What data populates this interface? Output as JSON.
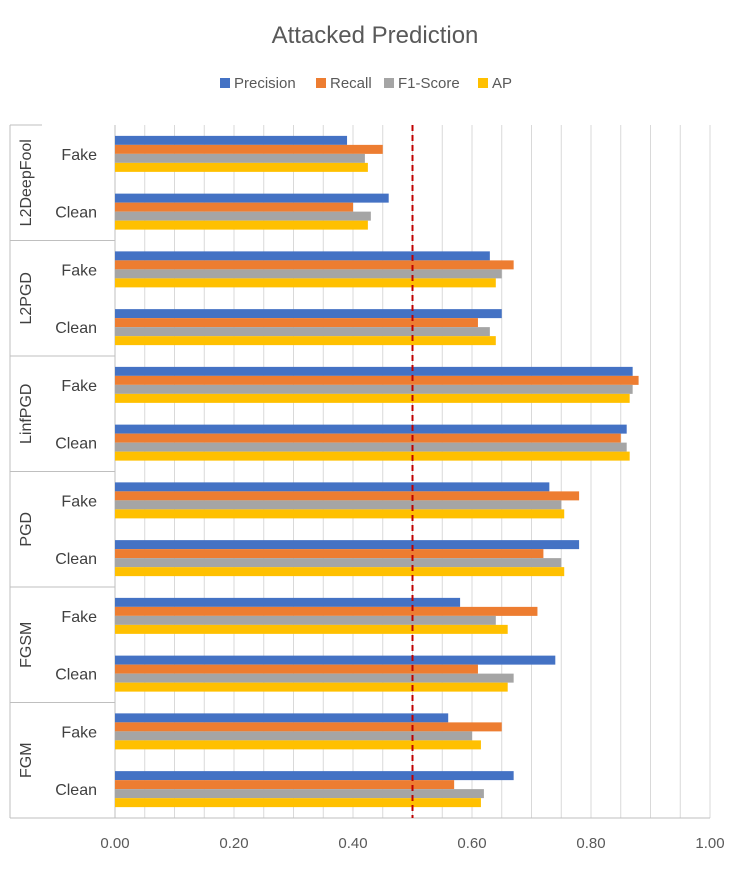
{
  "chart_data": {
    "type": "bar",
    "orientation": "horizontal",
    "title": "Attacked Prediction",
    "legend_position": "top",
    "xlim": [
      0,
      1
    ],
    "x_ticks": [
      "0.00",
      "0.20",
      "0.40",
      "0.60",
      "0.80",
      "1.00"
    ],
    "reference_line": {
      "value": 0.5,
      "style": "dashed",
      "color": "#C00000"
    },
    "series": [
      {
        "name": "Precision",
        "color": "#4472C4"
      },
      {
        "name": "Recall",
        "color": "#ED7D31"
      },
      {
        "name": "F1-Score",
        "color": "#A5A5A5"
      },
      {
        "name": "AP",
        "color": "#FFC000"
      }
    ],
    "groups": [
      {
        "name": "L2DeepFool",
        "categories": [
          {
            "label": "Fake",
            "values": [
              0.39,
              0.45,
              0.42,
              0.425
            ]
          },
          {
            "label": "Clean",
            "values": [
              0.46,
              0.4,
              0.43,
              0.425
            ]
          }
        ]
      },
      {
        "name": "L2PGD",
        "categories": [
          {
            "label": "Fake",
            "values": [
              0.63,
              0.67,
              0.65,
              0.64
            ]
          },
          {
            "label": "Clean",
            "values": [
              0.65,
              0.61,
              0.63,
              0.64
            ]
          }
        ]
      },
      {
        "name": "LinfPGD",
        "categories": [
          {
            "label": "Fake",
            "values": [
              0.87,
              0.88,
              0.87,
              0.865
            ]
          },
          {
            "label": "Clean",
            "values": [
              0.86,
              0.85,
              0.86,
              0.865
            ]
          }
        ]
      },
      {
        "name": "PGD",
        "categories": [
          {
            "label": "Fake",
            "values": [
              0.73,
              0.78,
              0.75,
              0.755
            ]
          },
          {
            "label": "Clean",
            "values": [
              0.78,
              0.72,
              0.75,
              0.755
            ]
          }
        ]
      },
      {
        "name": "FGSM",
        "categories": [
          {
            "label": "Fake",
            "values": [
              0.58,
              0.71,
              0.64,
              0.66
            ]
          },
          {
            "label": "Clean",
            "values": [
              0.74,
              0.61,
              0.67,
              0.66
            ]
          }
        ]
      },
      {
        "name": "FGM",
        "categories": [
          {
            "label": "Fake",
            "values": [
              0.56,
              0.65,
              0.6,
              0.615
            ]
          },
          {
            "label": "Clean",
            "values": [
              0.67,
              0.57,
              0.62,
              0.615
            ]
          }
        ]
      }
    ]
  }
}
